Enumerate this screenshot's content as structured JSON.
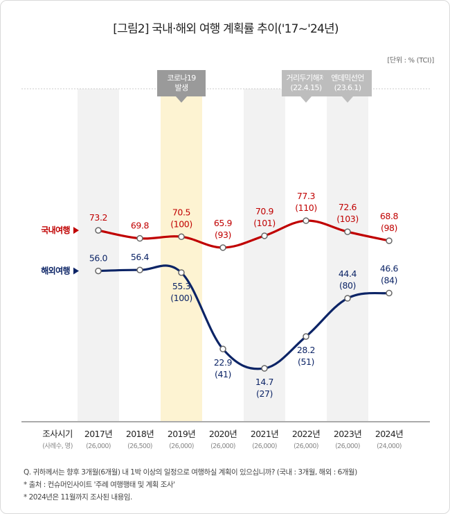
{
  "title": "[그림2] 국내·해외 여행 계획률 추이('17~'24년)",
  "unit": "[단위 : % (TCI)]",
  "chart_data": {
    "type": "line",
    "categories": [
      "2017년",
      "2018년",
      "2019년",
      "2020년",
      "2021년",
      "2022년",
      "2023년",
      "2024년"
    ],
    "sample_sizes": [
      "(26,000)",
      "(26,500)",
      "(26,000)",
      "(26,000)",
      "(26,000)",
      "(26,000)",
      "(26,000)",
      "(24,000)"
    ],
    "x_header": "조사시기",
    "x_subheader": "(사례수, 명)",
    "series": [
      {
        "name": "국내여행",
        "color": "#c00000",
        "values": [
          73.2,
          69.8,
          70.5,
          65.9,
          70.9,
          77.3,
          72.6,
          68.8
        ],
        "tci": [
          null,
          null,
          "(100)",
          "(93)",
          "(101)",
          "(110)",
          "(103)",
          "(98)"
        ]
      },
      {
        "name": "해외여행",
        "color": "#0c2466",
        "values": [
          56.0,
          56.4,
          55.3,
          22.9,
          14.7,
          28.2,
          44.4,
          46.6
        ],
        "tci": [
          null,
          null,
          "(100)",
          "(41)",
          "(27)",
          "(51)",
          "(80)",
          "(84)"
        ]
      }
    ],
    "events": [
      {
        "category_index": 2,
        "lines": [
          "코로나19",
          "발생"
        ],
        "highlight": true
      },
      {
        "category_index": 5,
        "lines": [
          "거리두기해제",
          "(22.4.15)"
        ],
        "highlight": false
      },
      {
        "category_index": 6,
        "lines": [
          "엔데믹선언",
          "(23.6.1)"
        ],
        "highlight": false
      }
    ]
  },
  "notes": [
    "Q. 귀하께서는 향후 3개월(6개월) 내 1박 이상의 일정으로 여행하실 계획이 있으십니까? (국내 : 3개월, 해외 : 6개월)",
    "* 출처 : 컨슈머인사이트 '주례 여행행태 및 계획 조사'",
    "* 2024년은 11월까지 조사된 내용임."
  ]
}
